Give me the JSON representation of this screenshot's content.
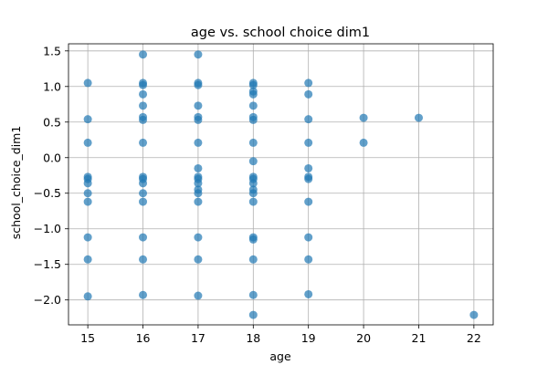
{
  "chart_data": {
    "type": "scatter",
    "title": "age vs. school choice dim1",
    "xlabel": "age",
    "ylabel": "school_choice_dim1",
    "xlim": [
      14.65,
      22.35
    ],
    "ylim": [
      -2.35,
      1.6
    ],
    "xticks": [
      15,
      16,
      17,
      18,
      19,
      20,
      21,
      22
    ],
    "xtick_labels": [
      "15",
      "16",
      "17",
      "18",
      "19",
      "20",
      "21",
      "22"
    ],
    "yticks": [
      1.5,
      1.0,
      0.5,
      0.0,
      -0.5,
      -1.0,
      -1.5,
      -2.0
    ],
    "ytick_labels": [
      "1.5",
      "1.0",
      "0.5",
      "0.0",
      "−0.5",
      "−1.0",
      "−1.5",
      "−2.0"
    ],
    "grid": true,
    "color": "#1f77b4",
    "points": [
      {
        "x": 15,
        "y": 1.05
      },
      {
        "x": 15,
        "y": 0.54
      },
      {
        "x": 15,
        "y": 0.21
      },
      {
        "x": 15,
        "y": -0.27
      },
      {
        "x": 15,
        "y": -0.3
      },
      {
        "x": 15,
        "y": -0.36
      },
      {
        "x": 15,
        "y": -0.5
      },
      {
        "x": 15,
        "y": -0.62
      },
      {
        "x": 15,
        "y": -1.12
      },
      {
        "x": 15,
        "y": -1.43
      },
      {
        "x": 15,
        "y": -1.95
      },
      {
        "x": 16,
        "y": 1.45
      },
      {
        "x": 16,
        "y": 1.05
      },
      {
        "x": 16,
        "y": 1.02
      },
      {
        "x": 16,
        "y": 0.89
      },
      {
        "x": 16,
        "y": 0.73
      },
      {
        "x": 16,
        "y": 0.57
      },
      {
        "x": 16,
        "y": 0.53
      },
      {
        "x": 16,
        "y": 0.21
      },
      {
        "x": 16,
        "y": -0.27
      },
      {
        "x": 16,
        "y": -0.3
      },
      {
        "x": 16,
        "y": -0.36
      },
      {
        "x": 16,
        "y": -0.5
      },
      {
        "x": 16,
        "y": -0.62
      },
      {
        "x": 16,
        "y": -1.12
      },
      {
        "x": 16,
        "y": -1.43
      },
      {
        "x": 16,
        "y": -1.93
      },
      {
        "x": 17,
        "y": 1.45
      },
      {
        "x": 17,
        "y": 1.05
      },
      {
        "x": 17,
        "y": 1.02
      },
      {
        "x": 17,
        "y": 0.73
      },
      {
        "x": 17,
        "y": 0.57
      },
      {
        "x": 17,
        "y": 0.53
      },
      {
        "x": 17,
        "y": 0.21
      },
      {
        "x": 17,
        "y": -0.15
      },
      {
        "x": 17,
        "y": -0.27
      },
      {
        "x": 17,
        "y": -0.3
      },
      {
        "x": 17,
        "y": -0.36
      },
      {
        "x": 17,
        "y": -0.45
      },
      {
        "x": 17,
        "y": -0.5
      },
      {
        "x": 17,
        "y": -0.62
      },
      {
        "x": 17,
        "y": -1.12
      },
      {
        "x": 17,
        "y": -1.43
      },
      {
        "x": 17,
        "y": -1.94
      },
      {
        "x": 18,
        "y": 1.05
      },
      {
        "x": 18,
        "y": 1.02
      },
      {
        "x": 18,
        "y": 0.93
      },
      {
        "x": 18,
        "y": 0.89
      },
      {
        "x": 18,
        "y": 0.73
      },
      {
        "x": 18,
        "y": 0.57
      },
      {
        "x": 18,
        "y": 0.53
      },
      {
        "x": 18,
        "y": 0.21
      },
      {
        "x": 18,
        "y": -0.05
      },
      {
        "x": 18,
        "y": -0.27
      },
      {
        "x": 18,
        "y": -0.3
      },
      {
        "x": 18,
        "y": -0.36
      },
      {
        "x": 18,
        "y": -0.45
      },
      {
        "x": 18,
        "y": -0.5
      },
      {
        "x": 18,
        "y": -0.62
      },
      {
        "x": 18,
        "y": -1.12
      },
      {
        "x": 18,
        "y": -1.15
      },
      {
        "x": 18,
        "y": -1.43
      },
      {
        "x": 18,
        "y": -1.93
      },
      {
        "x": 18,
        "y": -2.21
      },
      {
        "x": 19,
        "y": 1.05
      },
      {
        "x": 19,
        "y": 0.89
      },
      {
        "x": 19,
        "y": 0.54
      },
      {
        "x": 19,
        "y": 0.21
      },
      {
        "x": 19,
        "y": -0.15
      },
      {
        "x": 19,
        "y": -0.27
      },
      {
        "x": 19,
        "y": -0.3
      },
      {
        "x": 19,
        "y": -0.62
      },
      {
        "x": 19,
        "y": -1.12
      },
      {
        "x": 19,
        "y": -1.43
      },
      {
        "x": 19,
        "y": -1.92
      },
      {
        "x": 20,
        "y": 0.56
      },
      {
        "x": 20,
        "y": 0.21
      },
      {
        "x": 21,
        "y": 0.56
      },
      {
        "x": 22,
        "y": -2.21
      }
    ]
  }
}
